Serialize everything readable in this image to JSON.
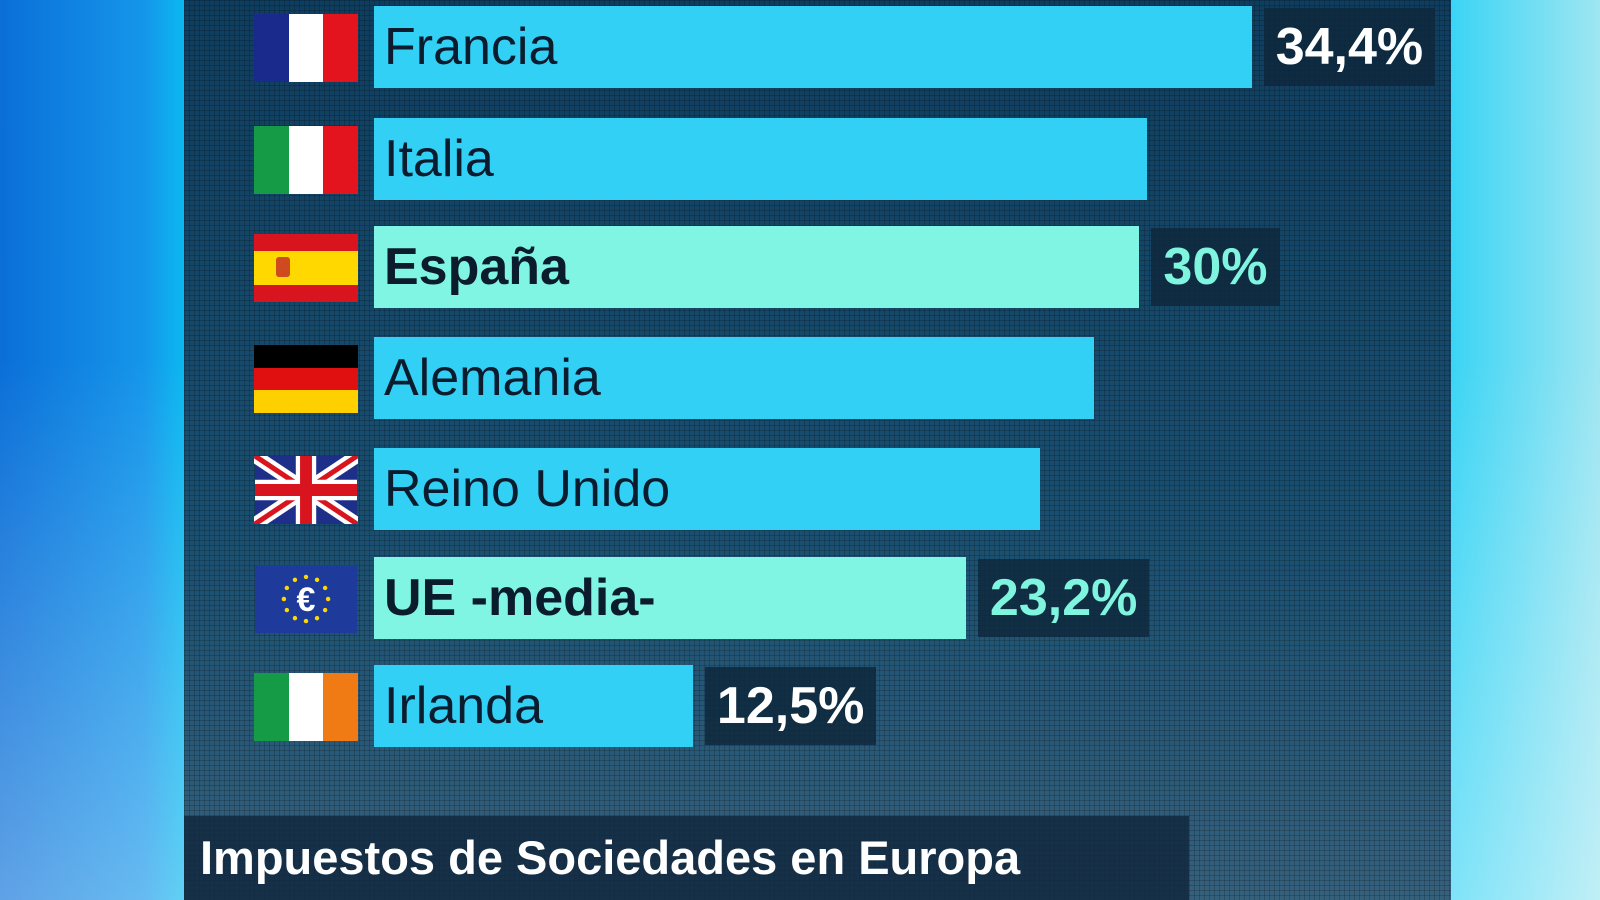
{
  "chart_data": {
    "type": "bar",
    "orientation": "horizontal",
    "title": "Impuestos de Sociedades en Europa",
    "categories": [
      "Francia",
      "Italia",
      "España",
      "Alemania",
      "Reino Unido",
      "UE -media-",
      "Irlanda"
    ],
    "values": [
      34.4,
      30.3,
      30,
      28.2,
      26.1,
      23.2,
      12.5
    ],
    "value_labels": [
      "34,4%",
      "",
      "30%",
      "",
      "",
      "23,2%",
      "12,5%"
    ],
    "flags": [
      "france-flag",
      "italy-flag",
      "spain-flag",
      "germany-flag",
      "uk-flag",
      "eu-flag",
      "ireland-flag"
    ],
    "highlighted": [
      "España",
      "UE -media-"
    ],
    "xlim": [
      0,
      35
    ],
    "grid": false,
    "colors": {
      "bar": "#33d0f5",
      "highlight_bar": "#80f5e4",
      "label_white": "#ffffff",
      "label_highlight": "#7ff5e0",
      "panel": "#15466a"
    }
  }
}
